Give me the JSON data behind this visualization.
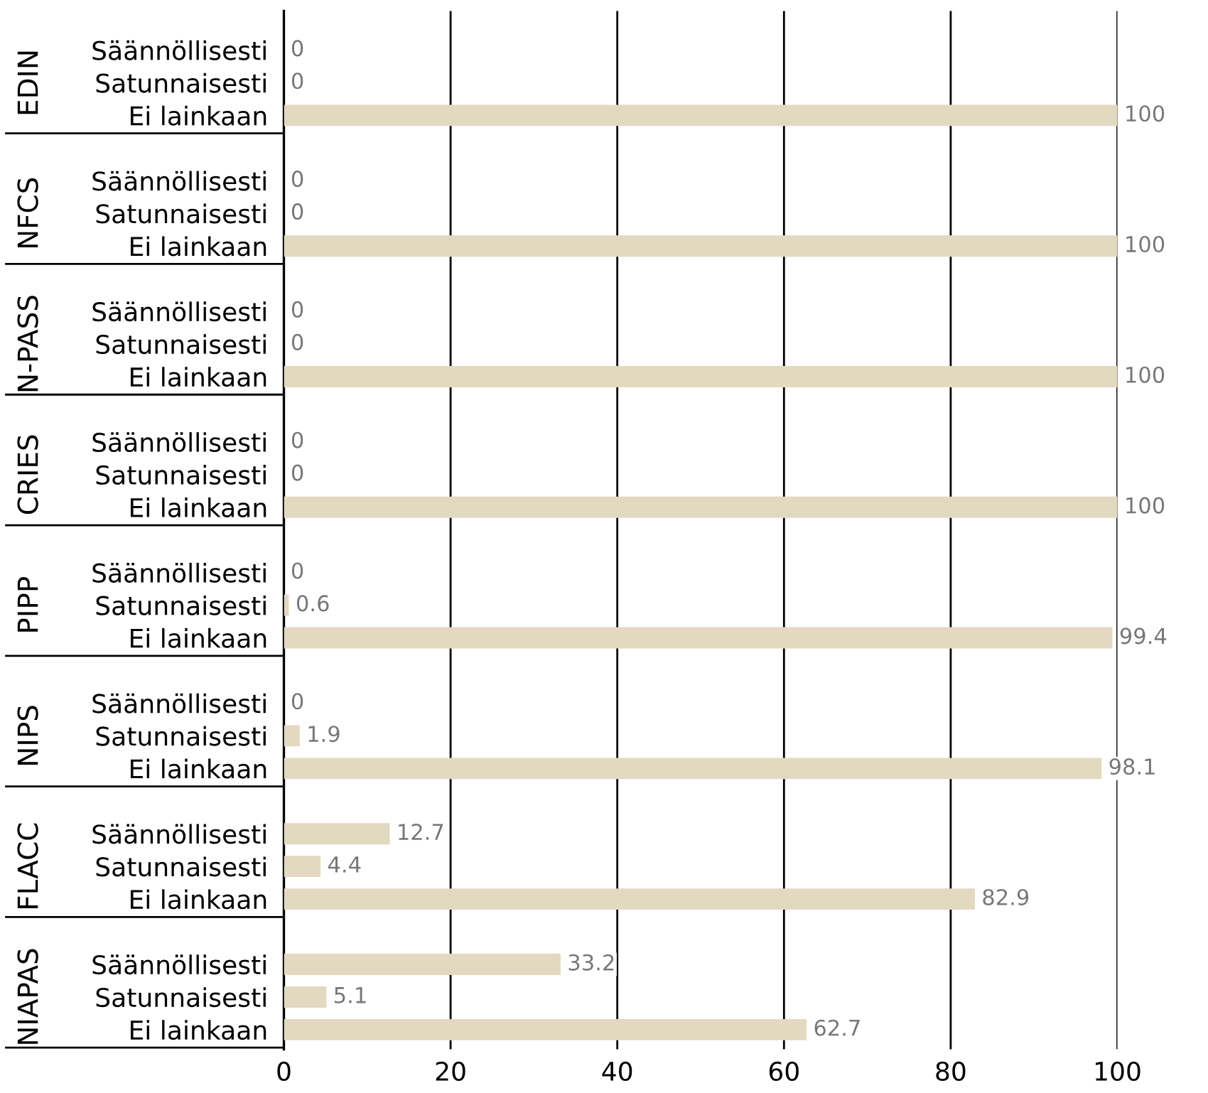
{
  "chart_data": {
    "type": "bar",
    "orientation": "horizontal",
    "categories": [
      "Säännöllisesti",
      "Satunnaisesti",
      "Ei lainkaan",
      "Säännöllisesti",
      "Satunnaisesti",
      "Ei lainkaan",
      "Säännöllisesti",
      "Satunnaisesti",
      "Ei lainkaan",
      "Säännöllisesti",
      "Satunnaisesti",
      "Ei lainkaan",
      "Säännöllisesti",
      "Satunnaisesti",
      "Ei lainkaan",
      "Säännöllisesti",
      "Satunnaisesti",
      "Ei lainkaan",
      "Säännöllisesti",
      "Satunnaisesti",
      "Ei lainkaan",
      "Säännöllisesti",
      "Satunnaisesti",
      "Ei lainkaan"
    ],
    "values": [
      0,
      0,
      100,
      0,
      0,
      100,
      0,
      0,
      100,
      0,
      0,
      100,
      0,
      0.6,
      99.4,
      0,
      1.9,
      98.1,
      12.7,
      4.4,
      82.9,
      33.2,
      5.1,
      62.7
    ],
    "color": "#e3d8c0",
    "annotations": [
      "EDIN",
      "NFCS",
      "N-PASS",
      "CRIES",
      "PIPP",
      "NIPS",
      "FLACC",
      "NIAPAS"
    ],
    "xlim": [
      0,
      100
    ],
    "xticks": [
      0,
      20,
      40,
      60,
      80,
      100
    ],
    "grid": "x",
    "data_labels": true
  }
}
